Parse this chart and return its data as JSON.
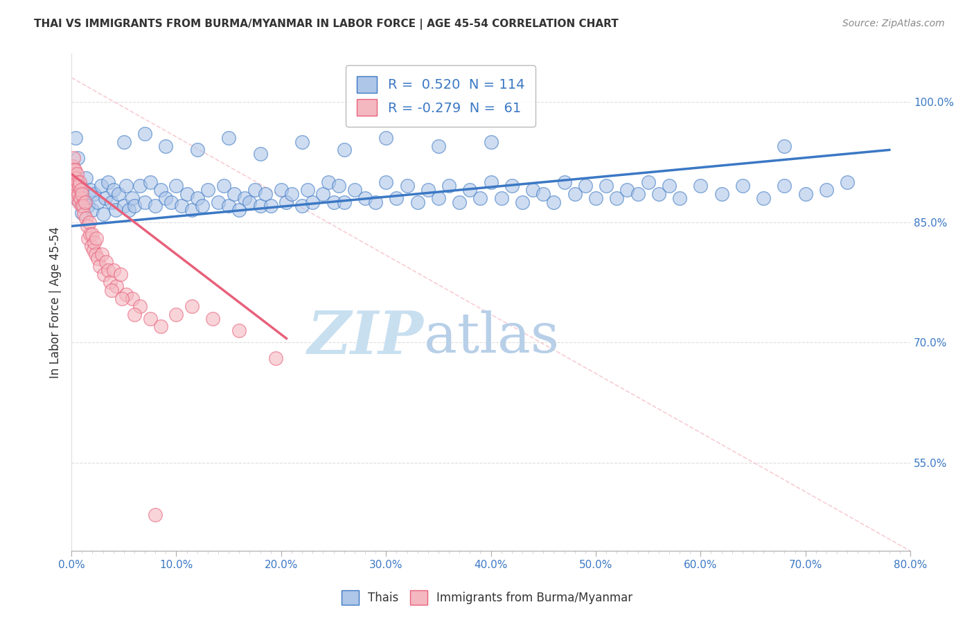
{
  "title": "THAI VS IMMIGRANTS FROM BURMA/MYANMAR IN LABOR FORCE | AGE 45-54 CORRELATION CHART",
  "source": "Source: ZipAtlas.com",
  "xlabel_ticks": [
    "0.0%",
    "",
    "",
    "",
    "",
    "",
    "",
    "",
    "",
    "",
    "10.0%",
    "",
    "",
    "",
    "",
    "",
    "",
    "",
    "",
    "",
    "20.0%",
    "",
    "",
    "",
    "",
    "",
    "",
    "",
    "",
    "",
    "30.0%",
    "",
    "",
    "",
    "",
    "",
    "",
    "",
    "",
    "",
    "40.0%",
    "",
    "",
    "",
    "",
    "",
    "",
    "",
    "",
    "",
    "50.0%",
    "",
    "",
    "",
    "",
    "",
    "",
    "",
    "",
    "",
    "60.0%",
    "",
    "",
    "",
    "",
    "",
    "",
    "",
    "",
    "",
    "70.0%",
    "",
    "",
    "",
    "",
    "",
    "",
    "",
    "",
    "",
    "80.0%"
  ],
  "xlabel_major_ticks": [
    0.0,
    10.0,
    20.0,
    30.0,
    40.0,
    50.0,
    60.0,
    70.0,
    80.0
  ],
  "xlabel_minor_ticks": [
    1.0,
    2.0,
    3.0,
    4.0,
    5.0,
    6.0,
    7.0,
    8.0,
    9.0,
    11.0,
    12.0,
    13.0,
    14.0,
    15.0,
    16.0,
    17.0,
    18.0,
    19.0,
    21.0,
    22.0,
    23.0,
    24.0,
    25.0,
    26.0,
    27.0,
    28.0,
    29.0,
    31.0,
    32.0,
    33.0,
    34.0,
    35.0,
    36.0,
    37.0,
    38.0,
    39.0,
    41.0,
    42.0,
    43.0,
    44.0,
    45.0,
    46.0,
    47.0,
    48.0,
    49.0,
    51.0,
    52.0,
    53.0,
    54.0,
    55.0,
    56.0,
    57.0,
    58.0,
    59.0,
    61.0,
    62.0,
    63.0,
    64.0,
    65.0,
    66.0,
    67.0,
    68.0,
    69.0,
    71.0,
    72.0,
    73.0,
    74.0,
    75.0,
    76.0,
    77.0,
    78.0,
    79.0
  ],
  "ylabel_ticks": [
    "55.0%",
    "70.0%",
    "85.0%",
    "100.0%"
  ],
  "ylabel_label": "In Labor Force | Age 45-54",
  "xlim": [
    0.0,
    80.0
  ],
  "ylim": [
    44.0,
    106.0
  ],
  "legend_footer": [
    "Thais",
    "Immigrants from Burma/Myanmar"
  ],
  "blue_scatter": [
    [
      0.3,
      88.5
    ],
    [
      0.5,
      90.2
    ],
    [
      0.6,
      87.8
    ],
    [
      0.8,
      89.5
    ],
    [
      1.0,
      86.2
    ],
    [
      1.2,
      88.0
    ],
    [
      1.4,
      90.5
    ],
    [
      1.6,
      87.0
    ],
    [
      1.8,
      89.0
    ],
    [
      2.0,
      86.5
    ],
    [
      2.2,
      88.5
    ],
    [
      2.5,
      87.5
    ],
    [
      2.8,
      89.5
    ],
    [
      3.0,
      86.0
    ],
    [
      3.2,
      88.0
    ],
    [
      3.5,
      90.0
    ],
    [
      3.8,
      87.5
    ],
    [
      4.0,
      89.0
    ],
    [
      4.2,
      86.5
    ],
    [
      4.5,
      88.5
    ],
    [
      5.0,
      87.0
    ],
    [
      5.2,
      89.5
    ],
    [
      5.5,
      86.5
    ],
    [
      5.8,
      88.0
    ],
    [
      6.0,
      87.0
    ],
    [
      6.5,
      89.5
    ],
    [
      7.0,
      87.5
    ],
    [
      7.5,
      90.0
    ],
    [
      8.0,
      87.0
    ],
    [
      8.5,
      89.0
    ],
    [
      9.0,
      88.0
    ],
    [
      9.5,
      87.5
    ],
    [
      10.0,
      89.5
    ],
    [
      10.5,
      87.0
    ],
    [
      11.0,
      88.5
    ],
    [
      11.5,
      86.5
    ],
    [
      12.0,
      88.0
    ],
    [
      12.5,
      87.0
    ],
    [
      13.0,
      89.0
    ],
    [
      14.0,
      87.5
    ],
    [
      14.5,
      89.5
    ],
    [
      15.0,
      87.0
    ],
    [
      15.5,
      88.5
    ],
    [
      16.0,
      86.5
    ],
    [
      16.5,
      88.0
    ],
    [
      17.0,
      87.5
    ],
    [
      17.5,
      89.0
    ],
    [
      18.0,
      87.0
    ],
    [
      18.5,
      88.5
    ],
    [
      19.0,
      87.0
    ],
    [
      20.0,
      89.0
    ],
    [
      20.5,
      87.5
    ],
    [
      21.0,
      88.5
    ],
    [
      22.0,
      87.0
    ],
    [
      22.5,
      89.0
    ],
    [
      23.0,
      87.5
    ],
    [
      24.0,
      88.5
    ],
    [
      24.5,
      90.0
    ],
    [
      25.0,
      87.5
    ],
    [
      25.5,
      89.5
    ],
    [
      26.0,
      87.5
    ],
    [
      27.0,
      89.0
    ],
    [
      28.0,
      88.0
    ],
    [
      29.0,
      87.5
    ],
    [
      30.0,
      90.0
    ],
    [
      31.0,
      88.0
    ],
    [
      32.0,
      89.5
    ],
    [
      33.0,
      87.5
    ],
    [
      34.0,
      89.0
    ],
    [
      35.0,
      88.0
    ],
    [
      36.0,
      89.5
    ],
    [
      37.0,
      87.5
    ],
    [
      38.0,
      89.0
    ],
    [
      39.0,
      88.0
    ],
    [
      40.0,
      90.0
    ],
    [
      41.0,
      88.0
    ],
    [
      42.0,
      89.5
    ],
    [
      43.0,
      87.5
    ],
    [
      44.0,
      89.0
    ],
    [
      45.0,
      88.5
    ],
    [
      46.0,
      87.5
    ],
    [
      47.0,
      90.0
    ],
    [
      48.0,
      88.5
    ],
    [
      49.0,
      89.5
    ],
    [
      50.0,
      88.0
    ],
    [
      51.0,
      89.5
    ],
    [
      52.0,
      88.0
    ],
    [
      53.0,
      89.0
    ],
    [
      54.0,
      88.5
    ],
    [
      55.0,
      90.0
    ],
    [
      56.0,
      88.5
    ],
    [
      57.0,
      89.5
    ],
    [
      58.0,
      88.0
    ],
    [
      60.0,
      89.5
    ],
    [
      62.0,
      88.5
    ],
    [
      64.0,
      89.5
    ],
    [
      66.0,
      88.0
    ],
    [
      68.0,
      89.5
    ],
    [
      70.0,
      88.5
    ],
    [
      72.0,
      89.0
    ],
    [
      74.0,
      90.0
    ],
    [
      0.4,
      95.5
    ],
    [
      0.6,
      93.0
    ],
    [
      5.0,
      95.0
    ],
    [
      7.0,
      96.0
    ],
    [
      9.0,
      94.5
    ],
    [
      12.0,
      94.0
    ],
    [
      15.0,
      95.5
    ],
    [
      18.0,
      93.5
    ],
    [
      22.0,
      95.0
    ],
    [
      26.0,
      94.0
    ],
    [
      30.0,
      95.5
    ],
    [
      35.0,
      94.5
    ],
    [
      40.0,
      95.0
    ],
    [
      68.0,
      94.5
    ]
  ],
  "pink_scatter": [
    [
      0.08,
      90.5
    ],
    [
      0.12,
      92.0
    ],
    [
      0.15,
      89.5
    ],
    [
      0.18,
      91.0
    ],
    [
      0.22,
      93.0
    ],
    [
      0.25,
      91.5
    ],
    [
      0.28,
      90.0
    ],
    [
      0.32,
      88.5
    ],
    [
      0.35,
      91.5
    ],
    [
      0.38,
      89.0
    ],
    [
      0.42,
      90.5
    ],
    [
      0.45,
      88.0
    ],
    [
      0.5,
      91.0
    ],
    [
      0.55,
      89.5
    ],
    [
      0.6,
      90.0
    ],
    [
      0.65,
      88.5
    ],
    [
      0.7,
      89.5
    ],
    [
      0.75,
      87.5
    ],
    [
      0.8,
      90.0
    ],
    [
      0.85,
      88.0
    ],
    [
      0.9,
      89.0
    ],
    [
      0.95,
      87.0
    ],
    [
      1.0,
      88.5
    ],
    [
      1.1,
      87.0
    ],
    [
      1.2,
      86.0
    ],
    [
      1.3,
      87.5
    ],
    [
      1.4,
      85.5
    ],
    [
      1.5,
      84.5
    ],
    [
      1.6,
      83.0
    ],
    [
      1.7,
      85.0
    ],
    [
      1.8,
      83.5
    ],
    [
      1.9,
      82.0
    ],
    [
      2.0,
      83.5
    ],
    [
      2.1,
      81.5
    ],
    [
      2.2,
      82.5
    ],
    [
      2.3,
      81.0
    ],
    [
      2.4,
      83.0
    ],
    [
      2.5,
      80.5
    ],
    [
      2.7,
      79.5
    ],
    [
      2.9,
      81.0
    ],
    [
      3.1,
      78.5
    ],
    [
      3.3,
      80.0
    ],
    [
      3.5,
      79.0
    ],
    [
      3.7,
      77.5
    ],
    [
      4.0,
      79.0
    ],
    [
      4.3,
      77.0
    ],
    [
      4.7,
      78.5
    ],
    [
      5.2,
      76.0
    ],
    [
      5.8,
      75.5
    ],
    [
      6.5,
      74.5
    ],
    [
      7.5,
      73.0
    ],
    [
      8.5,
      72.0
    ],
    [
      10.0,
      73.5
    ],
    [
      11.5,
      74.5
    ],
    [
      13.5,
      73.0
    ],
    [
      16.0,
      71.5
    ],
    [
      19.5,
      68.0
    ],
    [
      3.8,
      76.5
    ],
    [
      4.8,
      75.5
    ],
    [
      6.0,
      73.5
    ],
    [
      8.0,
      48.5
    ]
  ],
  "blue_line_x": [
    0.0,
    78.0
  ],
  "blue_line_y": [
    84.5,
    94.0
  ],
  "pink_line_x": [
    0.0,
    20.5
  ],
  "pink_line_y": [
    91.0,
    70.5
  ],
  "diag_line_x": [
    0.0,
    80.0
  ],
  "diag_line_y": [
    103.0,
    44.0
  ],
  "blue_color": "#aec6e8",
  "pink_color": "#f4b8c1",
  "blue_line_color": "#3b78c4",
  "pink_line_color": "#e8607a",
  "diag_line_color": "#f4b8c1",
  "title_color": "#333333",
  "source_color": "#888888",
  "axis_color": "#3b78c4",
  "watermark_zip_color": "#c8dff0",
  "watermark_atlas_color": "#b8cfe8",
  "background_color": "#ffffff"
}
